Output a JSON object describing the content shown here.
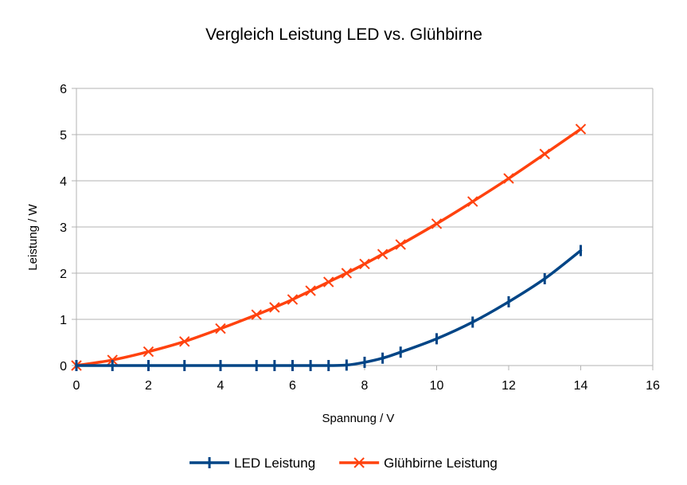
{
  "chart_data": {
    "type": "line",
    "title": "Vergleich Leistung LED vs. Glühbirne",
    "xlabel": "Spannung / V",
    "ylabel": "Leistung / W",
    "xlim": [
      0,
      16
    ],
    "ylim": [
      0,
      6
    ],
    "x_ticks": [
      0,
      2,
      4,
      6,
      8,
      10,
      12,
      14,
      16
    ],
    "y_ticks": [
      0,
      1,
      2,
      3,
      4,
      5,
      6
    ],
    "grid": "horizontal",
    "legend_position": "bottom",
    "series": [
      {
        "name": "LED Leistung",
        "color": "#004586",
        "marker": "vertical-bar",
        "x": [
          0,
          1,
          2,
          3,
          4,
          5,
          5.5,
          6,
          6.5,
          7,
          7.5,
          8,
          8.5,
          9,
          10,
          11,
          12,
          13,
          14
        ],
        "y": [
          0,
          0,
          0,
          0,
          0,
          0,
          0,
          0,
          0,
          0,
          0.01,
          0.07,
          0.16,
          0.29,
          0.58,
          0.94,
          1.38,
          1.88,
          2.49
        ]
      },
      {
        "name": "Glühbirne Leistung",
        "color": "#ff420e",
        "marker": "x",
        "x": [
          0,
          1,
          2,
          3,
          4,
          5,
          5.5,
          6,
          6.5,
          7,
          7.5,
          8,
          8.5,
          9,
          10,
          11,
          12,
          13,
          14
        ],
        "y": [
          0,
          0.12,
          0.3,
          0.52,
          0.8,
          1.1,
          1.26,
          1.43,
          1.62,
          1.81,
          2.0,
          2.2,
          2.41,
          2.62,
          3.07,
          3.55,
          4.05,
          4.58,
          5.12
        ]
      }
    ]
  }
}
